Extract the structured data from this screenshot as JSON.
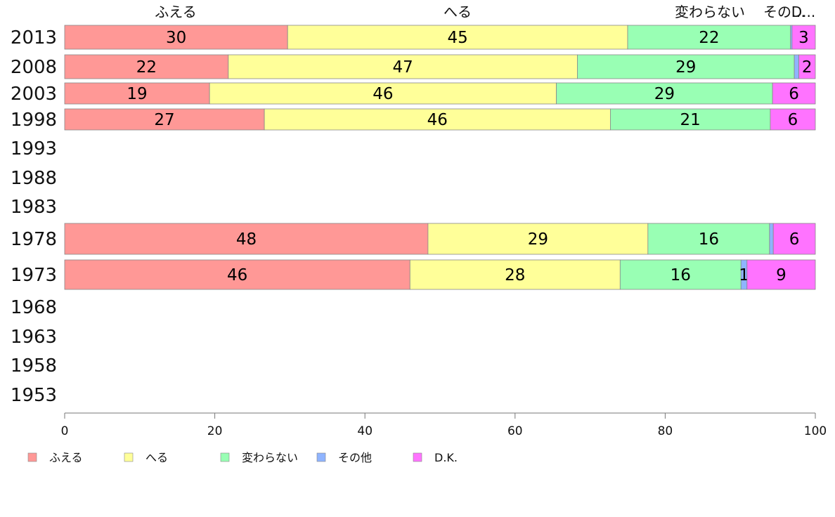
{
  "chart_data": {
    "type": "bar",
    "orientation": "horizontal",
    "stacked": true,
    "xlim": [
      0,
      100
    ],
    "x_ticks": [
      0,
      20,
      40,
      60,
      80,
      100
    ],
    "column_headers": [
      "ふえる",
      "へる",
      "変わらない",
      "その…",
      "D..."
    ],
    "categories": [
      "2013",
      "2008",
      "2003",
      "1998",
      "1993",
      "1988",
      "1983",
      "1978",
      "1973",
      "1968",
      "1963",
      "1958",
      "1953"
    ],
    "series": [
      {
        "name": "ふえる",
        "color": "#ff9896",
        "values": [
          29.7,
          21.8,
          19.3,
          26.6,
          null,
          null,
          null,
          48.4,
          46.0,
          null,
          null,
          null,
          null
        ],
        "labels": [
          "30",
          "22",
          "19",
          "27",
          "",
          "",
          "",
          "48",
          "46",
          "",
          "",
          "",
          ""
        ]
      },
      {
        "name": "へる",
        "color": "#ffff99",
        "values": [
          45.3,
          46.5,
          46.2,
          46.1,
          null,
          null,
          null,
          29.3,
          28.0,
          null,
          null,
          null,
          null
        ],
        "labels": [
          "45",
          "47",
          "46",
          "46",
          "",
          "",
          "",
          "29",
          "28",
          "",
          "",
          "",
          ""
        ]
      },
      {
        "name": "変わらない",
        "color": "#99ffb4",
        "values": [
          21.7,
          28.9,
          28.8,
          21.3,
          null,
          null,
          null,
          16.2,
          16.1,
          null,
          null,
          null,
          null
        ],
        "labels": [
          "22",
          "29",
          "29",
          "21",
          "",
          "",
          "",
          "16",
          "16",
          "",
          "",
          "",
          ""
        ]
      },
      {
        "name": "その他",
        "color": "#8fb4ff",
        "values": [
          0.2,
          0.6,
          0.0,
          0.0,
          null,
          null,
          null,
          0.5,
          0.8,
          null,
          null,
          null,
          null
        ],
        "labels": [
          "",
          "",
          "",
          "",
          "",
          "",
          "",
          "",
          "1",
          "",
          "",
          "",
          ""
        ]
      },
      {
        "name": "D.K.",
        "color": "#ff73ff",
        "values": [
          3.1,
          2.2,
          5.7,
          6.0,
          null,
          null,
          null,
          5.6,
          9.1,
          null,
          null,
          null,
          null
        ],
        "labels": [
          "3",
          "2",
          "6",
          "6",
          "",
          "",
          "",
          "6",
          "9",
          "",
          "",
          "",
          ""
        ]
      }
    ],
    "legend": {
      "position": "bottom",
      "entries": [
        "ふえる",
        "へる",
        "変わらない",
        "その他",
        "D.K."
      ]
    },
    "grid": false
  }
}
